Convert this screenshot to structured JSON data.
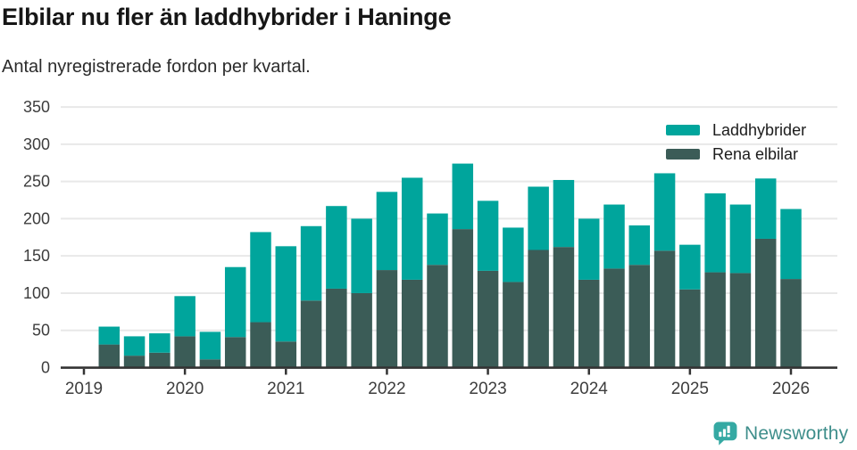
{
  "header": {
    "title": "Elbilar nu fler än laddhybrider i Haninge",
    "subtitle": "Antal nyregistrerade fordon per kvartal."
  },
  "footer": {
    "brand": "Newsworthy",
    "icon": "newsworthy-speech-bubble-bar-chart-icon",
    "brand_color": "#3e8e8b",
    "icon_color": "#35a9a3"
  },
  "colors": {
    "laddhybrider": "#00a59c",
    "rena_elbilar": "#3b5c57",
    "gridline": "#e8e8e8",
    "axis": "#333333",
    "tick_label": "#3d3d3d"
  },
  "chart_data": {
    "type": "bar",
    "stacked": true,
    "title": "Elbilar nu fler än laddhybrider i Haninge",
    "subtitle": "Antal nyregistrerade fordon per kvartal.",
    "x_unit": "quarter",
    "grid": "horizontal",
    "legend_position": "top-right",
    "ylim": [
      0,
      350
    ],
    "y_ticks": [
      0,
      50,
      100,
      150,
      200,
      250,
      300,
      350
    ],
    "x_tick_labels": [
      "2019",
      "2020",
      "2021",
      "2022",
      "2023",
      "2024",
      "2025",
      "2026"
    ],
    "categories": [
      "2019-Q2",
      "2019-Q3",
      "2019-Q4",
      "2020-Q1",
      "2020-Q2",
      "2020-Q3",
      "2020-Q4",
      "2021-Q1",
      "2021-Q2",
      "2021-Q3",
      "2021-Q4",
      "2022-Q1",
      "2022-Q2",
      "2022-Q3",
      "2022-Q4",
      "2023-Q1",
      "2023-Q2",
      "2023-Q3",
      "2023-Q4",
      "2024-Q1",
      "2024-Q2",
      "2024-Q3",
      "2024-Q4",
      "2025-Q1",
      "2025-Q2",
      "2025-Q3",
      "2025-Q4",
      "2026-Q1"
    ],
    "stack_order_bottom_to_top": [
      "Rena elbilar",
      "Laddhybrider"
    ],
    "series": [
      {
        "name": "Laddhybrider",
        "color": "#00a59c",
        "values": [
          24,
          26,
          26,
          54,
          37,
          94,
          121,
          128,
          100,
          111,
          100,
          105,
          137,
          69,
          88,
          94,
          73,
          85,
          90,
          82,
          86,
          53,
          104,
          60,
          106,
          92,
          81,
          94
        ]
      },
      {
        "name": "Rena elbilar",
        "color": "#3b5c57",
        "values": [
          31,
          16,
          20,
          42,
          11,
          41,
          61,
          35,
          90,
          106,
          100,
          131,
          118,
          138,
          186,
          130,
          115,
          158,
          162,
          118,
          133,
          138,
          157,
          105,
          128,
          127,
          173,
          119
        ]
      }
    ],
    "totals": [
      55,
      42,
      46,
      96,
      48,
      135,
      182,
      163,
      190,
      217,
      200,
      236,
      255,
      207,
      274,
      224,
      188,
      243,
      252,
      200,
      219,
      191,
      261,
      165,
      234,
      219,
      254,
      213
    ]
  }
}
